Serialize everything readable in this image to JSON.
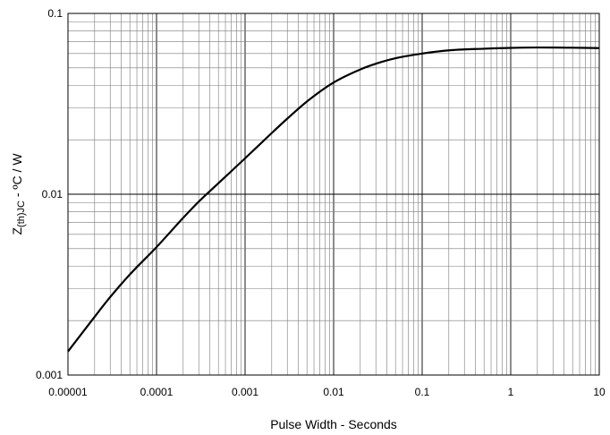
{
  "chart_data": {
    "type": "line",
    "title": "",
    "xlabel": "Pulse Width - Seconds",
    "ylabel": {
      "prefix": "Z",
      "subscript": "(th)JC",
      "suffix": " - ºC / W"
    },
    "xscale": "log",
    "yscale": "log",
    "xlim": [
      1e-05,
      10
    ],
    "ylim": [
      0.001,
      0.1
    ],
    "grid": true,
    "x_tick_labels": [
      "0.00001",
      "0.0001",
      "0.001",
      "0.01",
      "0.1",
      "1",
      "10"
    ],
    "y_tick_labels": [
      "0.001",
      "0.01",
      "0.1"
    ],
    "series": [
      {
        "x": [
          1e-05,
          2e-05,
          3e-05,
          5e-05,
          0.0001,
          0.0002,
          0.0003,
          0.0005,
          0.001,
          0.002,
          0.003,
          0.005,
          0.01,
          0.02,
          0.03,
          0.05,
          0.1,
          0.2,
          0.5,
          1,
          2,
          5,
          10
        ],
        "y": [
          0.00135,
          0.0021,
          0.0027,
          0.0036,
          0.0051,
          0.0074,
          0.0091,
          0.0115,
          0.0158,
          0.0218,
          0.0262,
          0.0326,
          0.0415,
          0.049,
          0.0527,
          0.0565,
          0.06,
          0.0625,
          0.0638,
          0.0645,
          0.0648,
          0.0646,
          0.0643
        ],
        "color": "#000000"
      }
    ]
  }
}
